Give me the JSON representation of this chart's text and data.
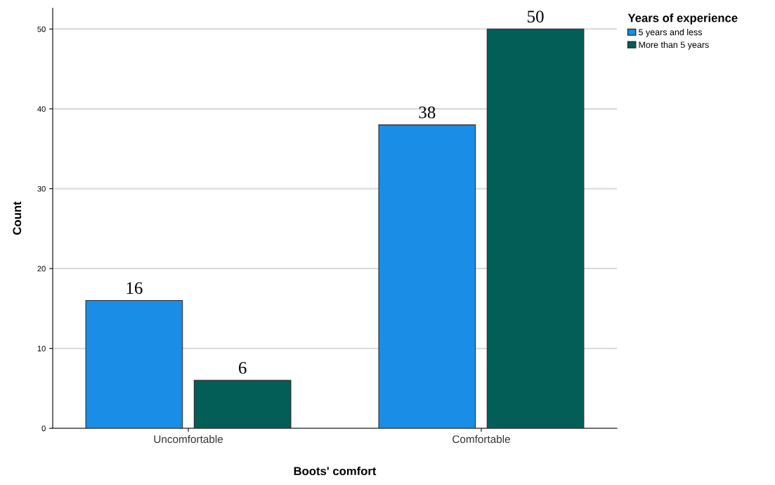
{
  "chart_data": {
    "type": "bar",
    "xlabel": "Boots' comfort",
    "ylabel": "Count",
    "legend_title": "Years of experience",
    "categories": [
      "Uncomfortable",
      "Comfortable"
    ],
    "series": [
      {
        "name": "5 years and less",
        "color": "#1a8de6",
        "values": [
          16,
          38
        ]
      },
      {
        "name": "More than 5 years",
        "color": "#035e58",
        "values": [
          6,
          50
        ]
      }
    ],
    "ylim": [
      0,
      52.6
    ],
    "yticks": [
      0,
      10,
      20,
      30,
      40,
      50
    ],
    "grid": "y",
    "legend": "top right",
    "data_labels": true
  }
}
